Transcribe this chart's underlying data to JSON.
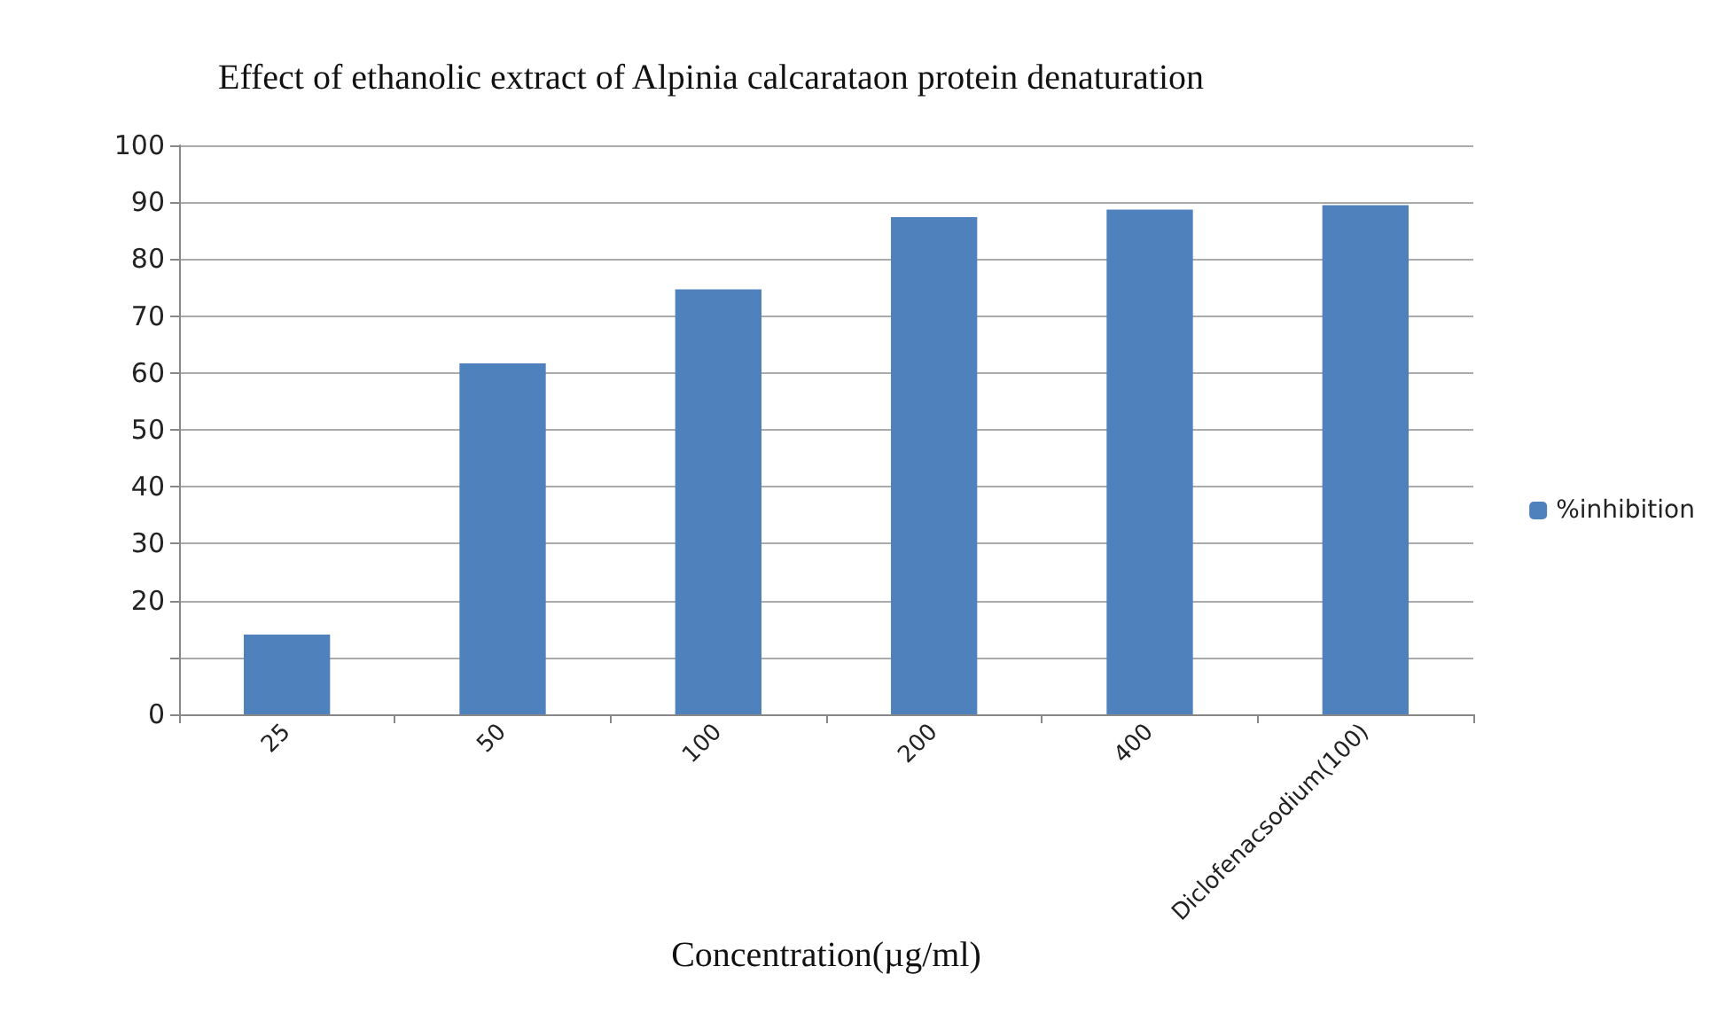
{
  "chart_data": {
    "type": "bar",
    "title": "Effect of ethanolic extract of Alpinia calcarataon protein denaturation",
    "xlabel": "Concentration(µg/ml)",
    "categories": [
      "25",
      "50",
      "100",
      "200",
      "400",
      "Diclofenacsodium(100)"
    ],
    "series": [
      {
        "name": "%inhibition",
        "color": "#4f81bd",
        "values": [
          14,
          61.7,
          74.7,
          87.4,
          88.7,
          89.5
        ]
      }
    ],
    "ylim": [
      0,
      100
    ],
    "yticks": [
      0,
      {
        "value": 10,
        "label": null
      },
      20,
      30,
      40,
      50,
      60,
      70,
      80,
      90,
      100
    ],
    "grid": "y",
    "legend": "right"
  }
}
